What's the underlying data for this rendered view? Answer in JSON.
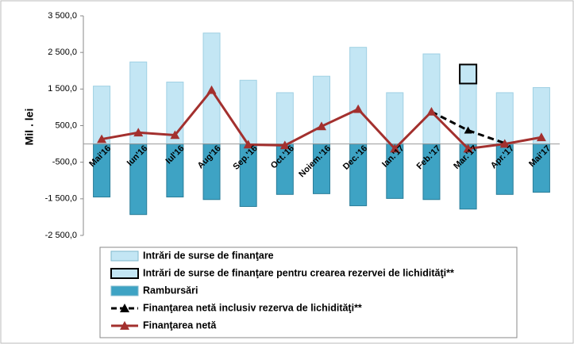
{
  "chart_data": {
    "type": "bar",
    "y_label": "Mil . lei",
    "categories": [
      "Mai'16",
      "Iun'16",
      "Iul'16",
      "Aug'16",
      "Sep.'16",
      "Oct.'16",
      "Noiem.'16",
      "Dec.'16",
      "Ian.'17",
      "Feb.'17",
      "Mar.'17",
      "Apr.'17",
      "Mai'17"
    ],
    "series": [
      {
        "name": "Intrări de surse de finanţare",
        "type": "bar",
        "color": "#c3e6f4",
        "values": [
          1580,
          2240,
          1690,
          3030,
          1740,
          1400,
          1850,
          2640,
          1400,
          2460,
          1650,
          1400,
          1540
        ]
      },
      {
        "name": "Intrări  de surse de finanţare pentru crearea rezervei de lichidităţi**",
        "type": "bar",
        "color": "#c3e6f4",
        "values": [
          null,
          null,
          null,
          null,
          null,
          null,
          null,
          null,
          null,
          null,
          520,
          null,
          null
        ]
      },
      {
        "name": "Rambursări",
        "type": "bar",
        "color": "#3ea3c4",
        "values": [
          -1450,
          -1930,
          -1450,
          -1520,
          -1710,
          -1380,
          -1360,
          -1690,
          -1490,
          -1520,
          -1780,
          -1380,
          -1320
        ]
      },
      {
        "name": "Finanţarea netă inclusiv rezerva de lichidităţi**",
        "type": "line",
        "color": "#000000",
        "values": [
          null,
          null,
          null,
          null,
          null,
          null,
          null,
          null,
          null,
          880,
          370,
          20,
          null
        ]
      },
      {
        "name": "Finanţarea netă",
        "type": "line",
        "color": "#a3302e",
        "values": [
          130,
          310,
          240,
          1470,
          -20,
          -40,
          480,
          950,
          -130,
          880,
          -130,
          0,
          180
        ]
      }
    ],
    "ylim": [
      -2500,
      3500
    ],
    "yticks": [
      {
        "value": -2500,
        "label": "-2 500,0"
      },
      {
        "value": -1500,
        "label": "-1 500,0"
      },
      {
        "value": -500,
        "label": "-500,0"
      },
      {
        "value": 500,
        "label": "500,0"
      },
      {
        "value": 1500,
        "label": "1 500,0"
      },
      {
        "value": 2500,
        "label": "2 500,0"
      },
      {
        "value": 3500,
        "label": "3 500,0"
      }
    ],
    "grid": false
  }
}
